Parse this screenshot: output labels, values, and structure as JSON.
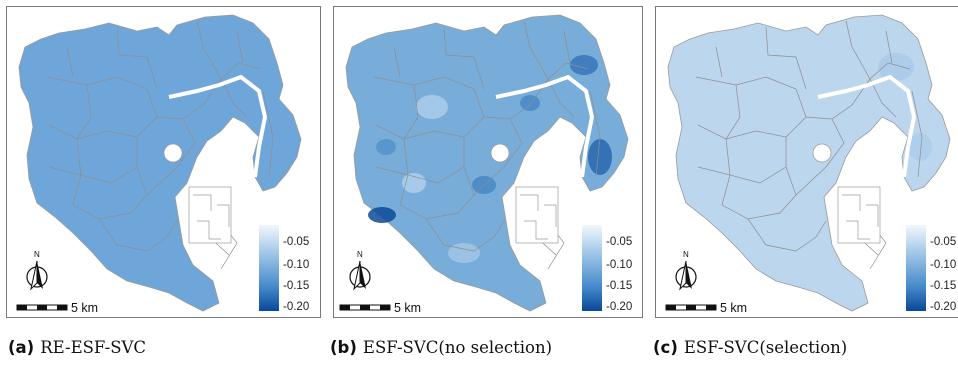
{
  "colors": {
    "light": "#e7f0fa",
    "mid": "#6fa6d9",
    "dark": "#08489a",
    "boundary": "#8c8c8c"
  },
  "legend_ticks": [
    "-0.05",
    "-0.10",
    "-0.15",
    "-0.20"
  ],
  "legend_range": [
    -0.2,
    -0.03
  ],
  "scale_bar": {
    "label": "5 km"
  },
  "north_arrow": {
    "label": "N",
    "icon": "north-arrow-icon"
  },
  "panels": [
    {
      "id": "a",
      "label": "(a)",
      "caption": "RE-ESF-SVC",
      "fill": "#6fa6d9",
      "variation": "low"
    },
    {
      "id": "b",
      "label": "(b)",
      "caption": "ESF-SVC(no selection)",
      "fill": "#78add9",
      "variation": "high"
    },
    {
      "id": "c",
      "label": "(c)",
      "caption": "ESF-SVC(selection)",
      "fill": "#bcd6ee",
      "variation": "very-low"
    }
  ]
}
